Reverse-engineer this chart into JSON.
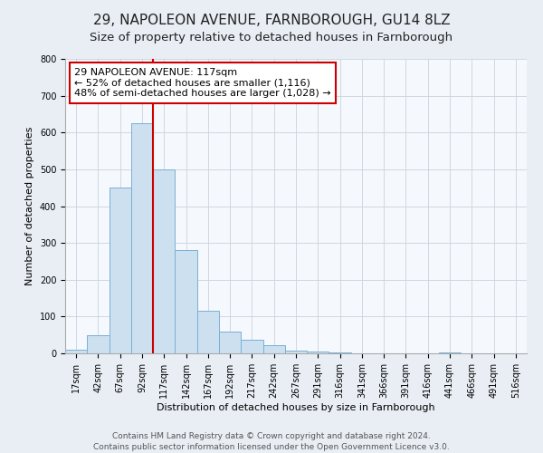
{
  "title": "29, NAPOLEON AVENUE, FARNBOROUGH, GU14 8LZ",
  "subtitle": "Size of property relative to detached houses in Farnborough",
  "xlabel": "Distribution of detached houses by size in Farnborough",
  "ylabel": "Number of detached properties",
  "bin_labels": [
    "17sqm",
    "42sqm",
    "67sqm",
    "92sqm",
    "117sqm",
    "142sqm",
    "167sqm",
    "192sqm",
    "217sqm",
    "242sqm",
    "267sqm",
    "291sqm",
    "316sqm",
    "341sqm",
    "366sqm",
    "391sqm",
    "416sqm",
    "441sqm",
    "466sqm",
    "491sqm",
    "516sqm"
  ],
  "bin_values": [
    10,
    50,
    450,
    625,
    500,
    280,
    115,
    60,
    37,
    22,
    8,
    5,
    3,
    0,
    0,
    0,
    0,
    3,
    0,
    0,
    0
  ],
  "bar_color": "#cce0f0",
  "bar_edge_color": "#7ab0d4",
  "vline_color": "#cc0000",
  "vline_x_index": 4,
  "annotation_text": "29 NAPOLEON AVENUE: 117sqm\n← 52% of detached houses are smaller (1,116)\n48% of semi-detached houses are larger (1,028) →",
  "annotation_box_color": "#ffffff",
  "annotation_box_edge": "#cc0000",
  "ylim": [
    0,
    800
  ],
  "yticks": [
    0,
    100,
    200,
    300,
    400,
    500,
    600,
    700,
    800
  ],
  "footer_line1": "Contains HM Land Registry data © Crown copyright and database right 2024.",
  "footer_line2": "Contains public sector information licensed under the Open Government Licence v3.0.",
  "bg_color": "#e8eef4",
  "plot_bg_color": "#f5f8fc",
  "grid_color": "#c8d4e0",
  "title_fontsize": 11,
  "subtitle_fontsize": 9.5,
  "axis_label_fontsize": 8,
  "tick_fontsize": 7,
  "annotation_fontsize": 8,
  "footer_fontsize": 6.5
}
